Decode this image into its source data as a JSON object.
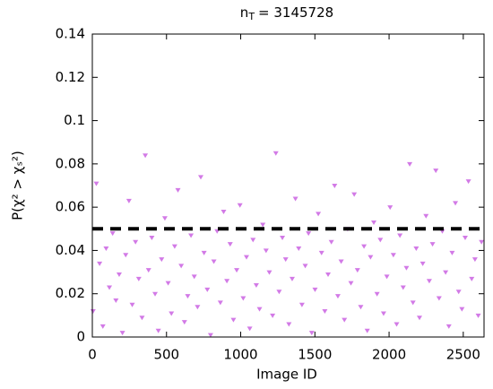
{
  "chart_data": {
    "type": "scatter",
    "title": {
      "main": "n",
      "sub": "T",
      "rest": "= 3145728"
    },
    "x_label": "Image ID",
    "y_label": "P(χ² > χₛ²)",
    "xlim": [
      0,
      2640
    ],
    "ylim": [
      0,
      0.14
    ],
    "xticks": [
      0,
      500,
      1000,
      1500,
      2000,
      2500
    ],
    "yticks": [
      0,
      0.02,
      0.04,
      0.06,
      0.08,
      0.1,
      0.12,
      0.14
    ],
    "threshold": 0.05,
    "series": [
      {
        "color": "#d27ae6",
        "x": [
          5,
          27,
          49,
          71,
          93,
          115,
          137,
          159,
          181,
          203,
          225,
          247,
          269,
          291,
          313,
          335,
          357,
          379,
          401,
          423,
          445,
          467,
          489,
          511,
          533,
          555,
          577,
          599,
          621,
          643,
          665,
          687,
          709,
          731,
          753,
          775,
          797,
          819,
          841,
          863,
          885,
          907,
          929,
          951,
          973,
          995,
          1017,
          1039,
          1061,
          1083,
          1105,
          1127,
          1149,
          1171,
          1193,
          1215,
          1237,
          1259,
          1281,
          1303,
          1325,
          1347,
          1369,
          1391,
          1413,
          1435,
          1457,
          1479,
          1501,
          1523,
          1545,
          1567,
          1589,
          1611,
          1633,
          1655,
          1677,
          1699,
          1721,
          1743,
          1765,
          1787,
          1809,
          1831,
          1853,
          1875,
          1897,
          1919,
          1941,
          1963,
          1985,
          2007,
          2029,
          2051,
          2073,
          2095,
          2117,
          2139,
          2161,
          2183,
          2205,
          2227,
          2249,
          2271,
          2293,
          2315,
          2337,
          2359,
          2381,
          2403,
          2425,
          2447,
          2469,
          2491,
          2513,
          2535,
          2557,
          2579,
          2601,
          2623
        ],
        "values": [
          0.012,
          0.071,
          0.034,
          0.005,
          0.041,
          0.023,
          0.048,
          0.017,
          0.029,
          0.002,
          0.038,
          0.063,
          0.015,
          0.044,
          0.027,
          0.009,
          0.084,
          0.031,
          0.046,
          0.02,
          0.003,
          0.036,
          0.055,
          0.025,
          0.011,
          0.042,
          0.068,
          0.033,
          0.007,
          0.019,
          0.047,
          0.028,
          0.014,
          0.074,
          0.039,
          0.022,
          0.001,
          0.035,
          0.049,
          0.016,
          0.058,
          0.026,
          0.043,
          0.008,
          0.031,
          0.061,
          0.018,
          0.037,
          0.004,
          0.045,
          0.024,
          0.013,
          0.052,
          0.04,
          0.03,
          0.01,
          0.085,
          0.021,
          0.046,
          0.036,
          0.006,
          0.027,
          0.064,
          0.041,
          0.015,
          0.033,
          0.048,
          0.002,
          0.022,
          0.057,
          0.039,
          0.012,
          0.029,
          0.044,
          0.07,
          0.019,
          0.035,
          0.008,
          0.05,
          0.025,
          0.066,
          0.031,
          0.014,
          0.042,
          0.003,
          0.037,
          0.053,
          0.02,
          0.045,
          0.011,
          0.028,
          0.06,
          0.038,
          0.006,
          0.047,
          0.023,
          0.032,
          0.08,
          0.016,
          0.041,
          0.009,
          0.034,
          0.056,
          0.026,
          0.043,
          0.077,
          0.018,
          0.049,
          0.03,
          0.005,
          0.039,
          0.062,
          0.021,
          0.013,
          0.046,
          0.072,
          0.027,
          0.036,
          0.01,
          0.044
        ]
      }
    ]
  }
}
